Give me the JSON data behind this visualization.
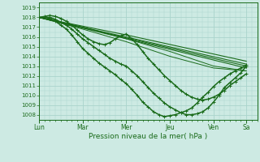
{
  "title": "",
  "xlabel": "Pression niveau de la mer( hPa )",
  "ylabel": "",
  "bg_color": "#cdeae3",
  "grid_color": "#aad4cc",
  "line_color": "#1a6b1a",
  "marker_color": "#1a6b1a",
  "ylim": [
    1007.5,
    1019.5
  ],
  "yticks": [
    1008,
    1009,
    1010,
    1011,
    1012,
    1013,
    1014,
    1015,
    1016,
    1017,
    1018,
    1019
  ],
  "x_day_labels": [
    "Lun",
    "Mar",
    "Mer",
    "Jeu",
    "Ven",
    "Sa"
  ],
  "x_day_positions": [
    0,
    24,
    48,
    72,
    96,
    114
  ],
  "total_hours": 120,
  "series": [
    {
      "x": [
        0,
        114
      ],
      "y": [
        1018.0,
        1013.2
      ],
      "has_markers": false,
      "linewidth": 0.8
    },
    {
      "x": [
        0,
        114
      ],
      "y": [
        1018.0,
        1012.8
      ],
      "has_markers": false,
      "linewidth": 0.8
    },
    {
      "x": [
        0,
        48,
        114
      ],
      "y": [
        1018.0,
        1016.2,
        1013.5
      ],
      "has_markers": false,
      "linewidth": 0.8
    },
    {
      "x": [
        0,
        114
      ],
      "y": [
        1018.0,
        1013.0
      ],
      "has_markers": false,
      "linewidth": 0.8
    },
    {
      "x": [
        0,
        3,
        6,
        9,
        12,
        15,
        18,
        21,
        24,
        27,
        30,
        33,
        36,
        39,
        42,
        45,
        48,
        51,
        54,
        57,
        60,
        63,
        66,
        69,
        72,
        75,
        78,
        81,
        84,
        87,
        90,
        93,
        96,
        99,
        102,
        105,
        108,
        111,
        114
      ],
      "y": [
        1018.0,
        1018.0,
        1018.0,
        1017.8,
        1017.5,
        1017.2,
        1016.8,
        1016.3,
        1015.8,
        1015.4,
        1015.0,
        1014.6,
        1014.2,
        1013.8,
        1013.5,
        1013.2,
        1013.0,
        1012.5,
        1012.0,
        1011.4,
        1010.8,
        1010.2,
        1009.7,
        1009.2,
        1008.8,
        1008.5,
        1008.2,
        1008.0,
        1008.0,
        1008.1,
        1008.3,
        1008.7,
        1009.3,
        1010.0,
        1010.8,
        1011.3,
        1011.8,
        1012.3,
        1013.0
      ],
      "has_markers": true,
      "linewidth": 1.1
    },
    {
      "x": [
        0,
        3,
        6,
        9,
        12,
        15,
        18,
        21,
        24,
        27,
        30,
        33,
        36,
        39,
        42,
        45,
        48,
        51,
        54,
        57,
        60,
        63,
        66,
        69,
        72,
        75,
        78,
        81,
        84,
        87,
        90,
        93,
        96,
        99,
        102,
        105,
        108,
        111,
        114
      ],
      "y": [
        1018.0,
        1018.0,
        1017.9,
        1017.6,
        1017.2,
        1016.8,
        1016.2,
        1015.5,
        1014.8,
        1014.3,
        1013.8,
        1013.3,
        1012.9,
        1012.5,
        1012.1,
        1011.6,
        1011.2,
        1010.6,
        1010.0,
        1009.3,
        1008.8,
        1008.3,
        1008.0,
        1007.8,
        1007.9,
        1008.0,
        1008.2,
        1008.4,
        1008.7,
        1009.2,
        1009.8,
        1010.3,
        1010.9,
        1011.4,
        1011.8,
        1012.2,
        1012.5,
        1012.8,
        1013.1
      ],
      "has_markers": true,
      "linewidth": 1.1
    },
    {
      "x": [
        0,
        3,
        6,
        9,
        12,
        15,
        18,
        21,
        24,
        27,
        30,
        33,
        36,
        39,
        42,
        45,
        48,
        51,
        54,
        57,
        60,
        63,
        66,
        69,
        72,
        75,
        78,
        81,
        84,
        87,
        90,
        93,
        96,
        99,
        102,
        105,
        108,
        111,
        114
      ],
      "y": [
        1018.0,
        1018.1,
        1018.2,
        1018.1,
        1017.9,
        1017.6,
        1017.2,
        1016.7,
        1016.2,
        1015.8,
        1015.5,
        1015.3,
        1015.2,
        1015.4,
        1015.8,
        1016.1,
        1016.3,
        1015.8,
        1015.2,
        1014.5,
        1013.8,
        1013.2,
        1012.6,
        1012.0,
        1011.5,
        1011.0,
        1010.5,
        1010.1,
        1009.8,
        1009.6,
        1009.5,
        1009.6,
        1009.8,
        1010.1,
        1010.5,
        1011.0,
        1011.4,
        1011.8,
        1012.2
      ],
      "has_markers": true,
      "linewidth": 1.1
    },
    {
      "x": [
        0,
        24,
        48,
        72,
        96,
        114
      ],
      "y": [
        1018.0,
        1017.0,
        1015.8,
        1014.5,
        1013.0,
        1012.5
      ],
      "has_markers": false,
      "linewidth": 0.7
    },
    {
      "x": [
        0,
        24,
        48,
        72,
        96,
        114
      ],
      "y": [
        1018.0,
        1016.8,
        1015.5,
        1014.0,
        1012.8,
        1012.5
      ],
      "has_markers": false,
      "linewidth": 0.7
    }
  ]
}
